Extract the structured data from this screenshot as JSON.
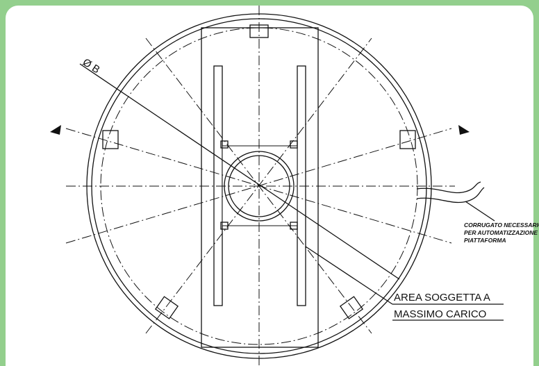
{
  "labels": {
    "diameter": "Ø B",
    "area_line1": "AREA SOGGETTA A",
    "area_line2": "MASSIMO CARICO",
    "note_line1": "CORRUGATO NECESSARIO",
    "note_line2": "PER AUTOMATIZZAZIONE",
    "note_line3": "PIATTAFORMA"
  }
}
